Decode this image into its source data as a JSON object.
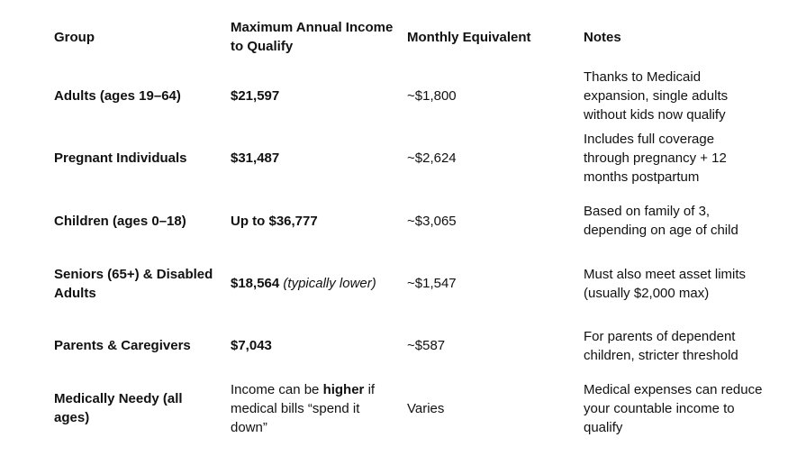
{
  "table": {
    "headers": [
      "Group",
      "Maximum Annual Income to Qualify",
      "Monthly Equivalent",
      "Notes"
    ],
    "rows": [
      [
        "Adults (ages 19–64)",
        "$21,597",
        "~$1,800",
        "Thanks to Medicaid expansion, single adults without kids now qualify"
      ],
      [
        "Pregnant Individuals",
        "$31,487",
        "~$2,624",
        "Includes full coverage through pregnancy + 12 months postpartum"
      ],
      [
        "Children (ages 0–18)",
        "Up to $36,777",
        "~$3,065",
        "Based on family of 3, depending on age of child"
      ],
      [
        "Seniors (65+) & Disabled Adults",
        {
          "bold": "$18,564",
          "italic": "(typically lower)"
        },
        "~$1,547",
        "Must also meet asset limits (usually $2,000 max)"
      ],
      [
        "Parents & Caregivers",
        "$7,043",
        "~$587",
        "For parents of dependent children, stricter threshold"
      ],
      [
        "Medically Needy (all ages)",
        [
          "Income can be ",
          "higher",
          " if medical bills “spend it down”"
        ],
        "Varies",
        "Medical expenses can reduce your countable income to qualify"
      ]
    ]
  }
}
